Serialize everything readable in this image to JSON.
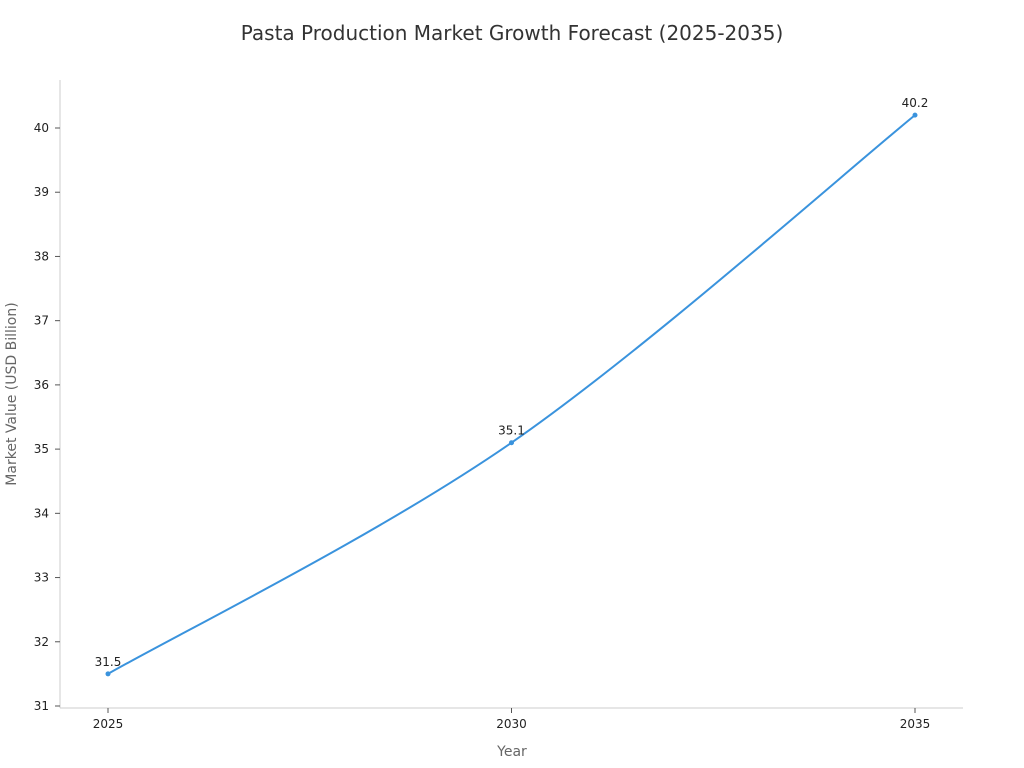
{
  "chart_data": {
    "type": "line",
    "title": "Pasta Production Market Growth Forecast (2025-2035)",
    "xlabel": "Year",
    "ylabel": "Market Value (USD Billion)",
    "x": [
      2025,
      2030,
      2035
    ],
    "series": [
      {
        "values": [
          31.5,
          35.1,
          40.2
        ],
        "data_labels": [
          "31.5",
          "35.1",
          "40.2"
        ]
      }
    ],
    "x_ticks": [
      "2025",
      "2030",
      "2035"
    ],
    "y_ticks": [
      "31",
      "32",
      "33",
      "34",
      "35",
      "36",
      "37",
      "38",
      "39",
      "40"
    ],
    "ylim": [
      31,
      40.2
    ],
    "grid": false,
    "line_color": "#3a93dd",
    "axis_color": "#cccccc",
    "text_color": "#222222",
    "label_color": "#666666"
  }
}
